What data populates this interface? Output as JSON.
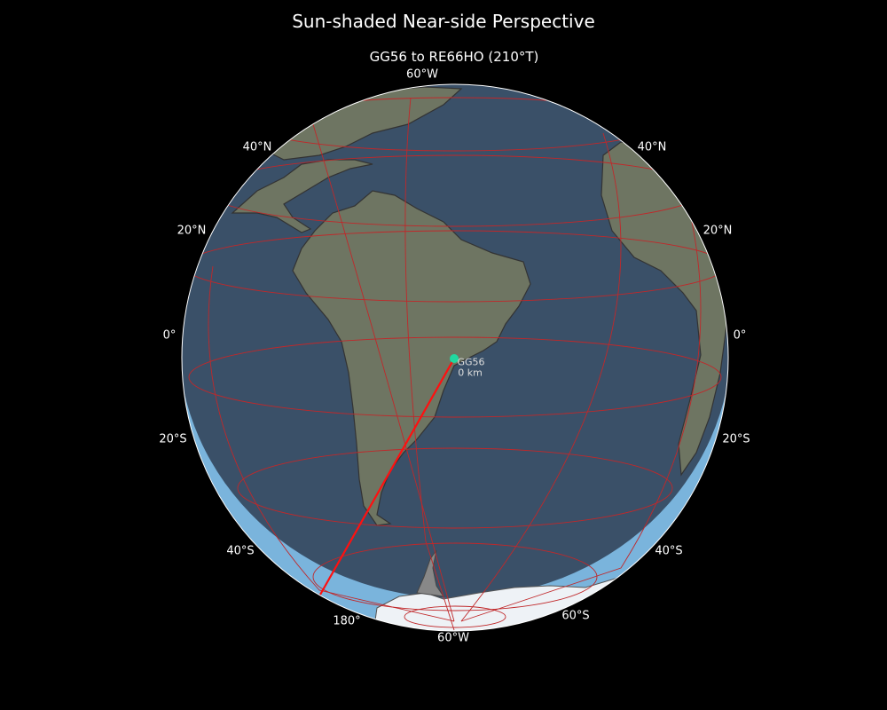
{
  "title": "Sun-shaded Near-side Perspective",
  "subtitle": "GG56 to RE66HO (210°T)",
  "colors": {
    "ocean_day": "#3a5068",
    "ocean_night": "#7ab4dc",
    "land": "#6e7562",
    "ice": "#eef2f6",
    "graticule": "#c0282a",
    "path": "#ff1010",
    "marker": "#20d8a0"
  },
  "marker": {
    "label": "GG56",
    "distance": "0 km"
  },
  "labels": {
    "top": "60°W",
    "bottom_lon": "60°W",
    "lon_180": "180°",
    "left_40n": "40°N",
    "right_40n": "40°N",
    "left_20n": "20°N",
    "right_20n": "20°N",
    "left_0": "0°",
    "right_0": "0°",
    "left_20s": "20°S",
    "right_20s": "20°S",
    "left_40s": "40°S",
    "right_40s": "40°S",
    "right_60s": "60°S"
  }
}
